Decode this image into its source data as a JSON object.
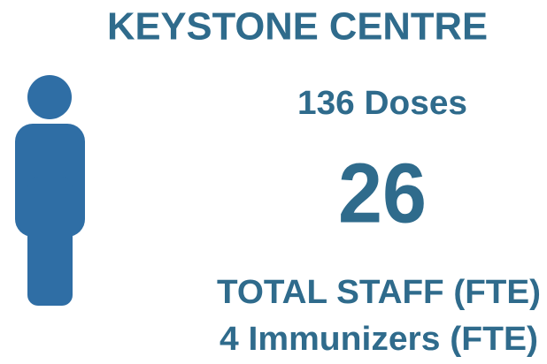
{
  "title": "KEYSTONE CENTRE",
  "doses": "136 Doses",
  "staff_count": "26",
  "staff_label": "TOTAL STAFF (FTE)",
  "immunizers": "4 Immunizers (FTE)"
}
